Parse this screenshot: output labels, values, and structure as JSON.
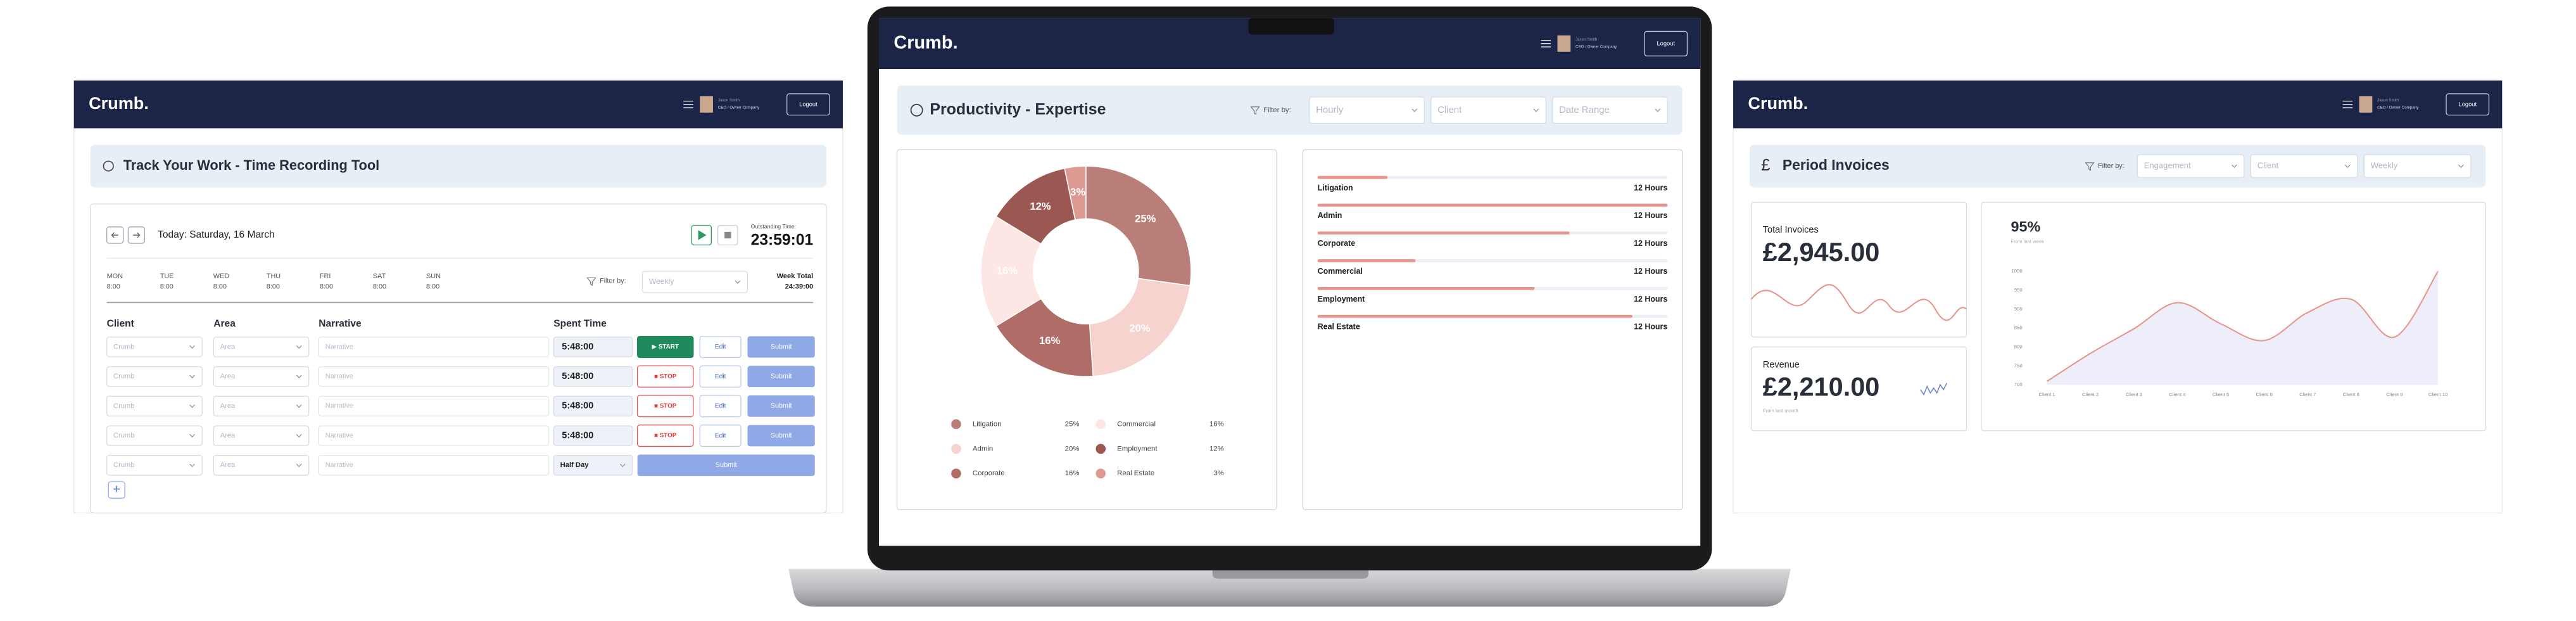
{
  "screens": {
    "left": {
      "brand": "Crumb.",
      "user": {
        "name": "Jason Smith",
        "role": "CEO / Owner Company"
      },
      "logout": "Logout",
      "title": "Track Your Work - Time Recording Tool",
      "today": "Today: Saturday, 16 March",
      "outstanding_label": "Outstanding Time:",
      "outstanding": "23:59:01",
      "days": [
        {
          "day": "MON",
          "time": "8:00"
        },
        {
          "day": "TUE",
          "time": "8:00"
        },
        {
          "day": "WED",
          "time": "8:00"
        },
        {
          "day": "THU",
          "time": "8:00"
        },
        {
          "day": "FRI",
          "time": "8:00"
        },
        {
          "day": "SAT",
          "time": "8:00"
        },
        {
          "day": "SUN",
          "time": "8:00"
        }
      ],
      "filter_label": "Filter by:",
      "filter_value": "Weekly",
      "week_total_label": "Week Total",
      "week_total": "24:39:00",
      "columns": [
        "Client",
        "Area",
        "Narrative",
        "Spent Time"
      ],
      "rows": [
        {
          "client": "Crumb",
          "area": "Area",
          "narrative": "Narrative",
          "time": "5:48:00",
          "action": "▶ START",
          "edit": "Edit",
          "submit": "Submit"
        },
        {
          "client": "Crumb",
          "area": "Area",
          "narrative": "Narrative",
          "time": "5:48:00",
          "action": "■ STOP",
          "edit": "Edit",
          "submit": "Submit"
        },
        {
          "client": "Crumb",
          "area": "Area",
          "narrative": "Narrative",
          "time": "5:48:00",
          "action": "■ STOP",
          "edit": "Edit",
          "submit": "Submit"
        },
        {
          "client": "Crumb",
          "area": "Area",
          "narrative": "Narrative",
          "time": "5:48:00",
          "action": "■ STOP",
          "edit": "Edit",
          "submit": "Submit"
        },
        {
          "client": "Crumb",
          "area": "Area",
          "narrative": "Narrative",
          "time": "Half Day",
          "submit": "Submit"
        }
      ],
      "add": "+"
    },
    "center": {
      "brand": "Crumb.",
      "user": {
        "name": "Jason Smith",
        "role": "CEO / Owner Company"
      },
      "logout": "Logout",
      "title": "Productivity - Expertise",
      "filter_label": "Filter by:",
      "filters": [
        "Hourly",
        "Client",
        "Date Range"
      ]
    },
    "right": {
      "brand": "Crumb.",
      "user": {
        "name": "Jason Smith",
        "role": "CEO / Owner Company"
      },
      "logout": "Logout",
      "title_icon": "£",
      "title": "Period Invoices",
      "filter_label": "Filter by:",
      "filters": [
        "Engagement",
        "Client",
        "Weekly"
      ],
      "total_label": "Total Invoices",
      "total": "£2,945.00",
      "revenue_label": "Revenue",
      "revenue": "£2,210.00",
      "revenue_note": "From last month"
    }
  },
  "chart_data": [
    {
      "type": "donut",
      "categories": [
        "Litigation",
        "Admin",
        "Corporate",
        "Commercial",
        "Employment",
        "Real Estate"
      ],
      "values": [
        25,
        20,
        16,
        16,
        12,
        3
      ],
      "value_labels": [
        "25%",
        "20%",
        "16%",
        "16%",
        "12%",
        "3%"
      ],
      "colors": [
        "#b87e77",
        "#f6d3cf",
        "#b06c66",
        "#fde6e3",
        "#9b5752",
        "#dc9a92"
      ]
    },
    {
      "type": "bar",
      "orientation": "horizontal",
      "categories": [
        "Litigation",
        "Admin",
        "Corporate",
        "Commercial",
        "Employment",
        "Real Estate"
      ],
      "values": [
        20,
        100,
        72,
        28,
        62,
        90
      ],
      "xlim": [
        0,
        100
      ],
      "hours_labels": [
        "12 Hours",
        "12 Hours",
        "12 Hours",
        "12 Hours",
        "12 Hours",
        "12 Hours"
      ],
      "color": "#e8958c",
      "track_color": "#eceff5"
    },
    {
      "type": "area",
      "title": "95%",
      "subtitle": "From last week",
      "categories": [
        "Client 1",
        "Client 2",
        "Client 3",
        "Client 4",
        "Client 5",
        "Client 6",
        "Client 7",
        "Client 8",
        "Client 9",
        "Client 10"
      ],
      "values": [
        709,
        783,
        848,
        917,
        861,
        817,
        891,
        926,
        826,
        1000
      ],
      "ylim": [
        700,
        1000
      ],
      "yticks": [
        700,
        750,
        800,
        850,
        900,
        950,
        1000
      ],
      "grid": false,
      "color": "#e8958c",
      "fill": "#eeeefa"
    }
  ]
}
